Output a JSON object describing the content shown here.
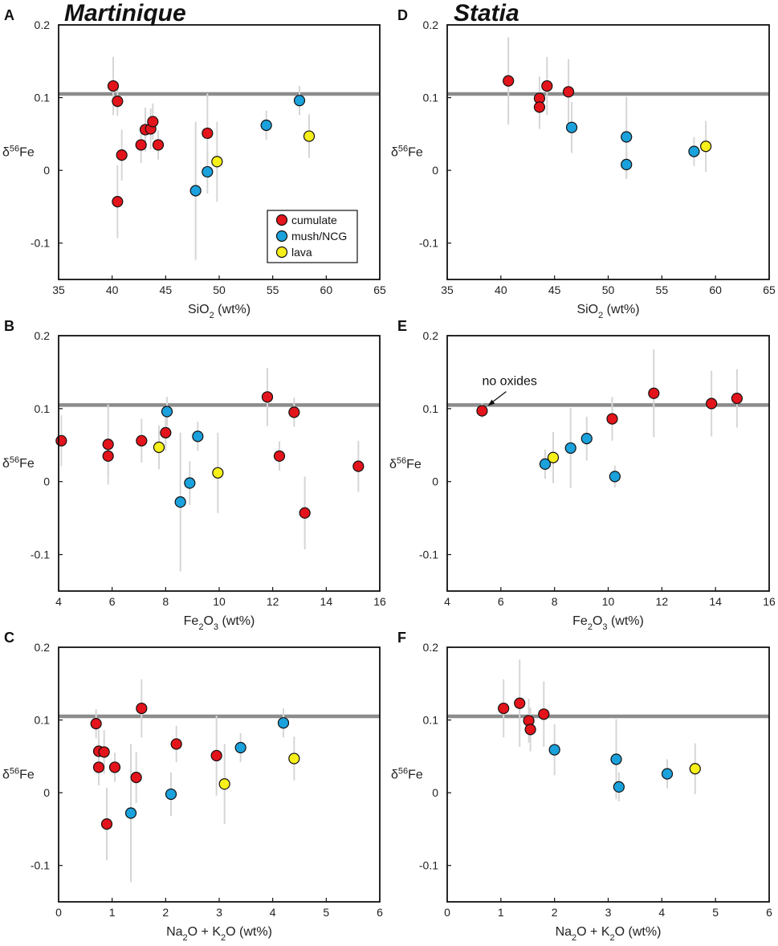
{
  "figure": {
    "titles": {
      "left": "Martinique",
      "right": "Statia"
    },
    "legend": {
      "placement": "bottom-right of panel A",
      "entries": [
        {
          "name": "cumulate",
          "color": "#e3141b"
        },
        {
          "name": "mush/NCG",
          "color": "#1ba1dc"
        },
        {
          "name": "lava",
          "color": "#f7ef1a"
        }
      ]
    },
    "colors": {
      "cumulate": "#e3141b",
      "mush": "#1ba1dc",
      "lava": "#f7ef1a",
      "refline": "#8c8c8c",
      "errorbar": "#d6d6d6"
    }
  },
  "chart_data": [
    {
      "panel": "A",
      "type": "scatter",
      "title": "Martinique",
      "xlabel": {
        "main": "SiO",
        "sub": "2",
        "tail": " (wt%)"
      },
      "ylabel": {
        "pre": "δ",
        "sup": "56",
        "post": "Fe"
      },
      "xlim": [
        35,
        65
      ],
      "ylim": [
        -0.15,
        0.2
      ],
      "xticks": [
        35,
        40,
        45,
        50,
        55,
        60,
        65
      ],
      "xtick_labels": [
        "35",
        "40",
        "45",
        "50",
        "55",
        "60",
        "65"
      ],
      "yticks": [
        -0.1,
        0,
        0.1,
        0.2
      ],
      "ytick_labels": [
        "-0.1",
        "0",
        "0.1",
        "0.2"
      ],
      "refline_y": 0.105,
      "series": [
        {
          "name": "cumulate",
          "points": [
            {
              "x": 40.1,
              "y": 0.116,
              "err": 0.04
            },
            {
              "x": 40.5,
              "y": 0.095,
              "err": 0.02
            },
            {
              "x": 40.9,
              "y": 0.021,
              "err": 0.035
            },
            {
              "x": 40.5,
              "y": -0.043,
              "err": 0.05
            },
            {
              "x": 42.7,
              "y": 0.035,
              "err": 0.025
            },
            {
              "x": 43.1,
              "y": 0.056,
              "err": 0.03
            },
            {
              "x": 43.6,
              "y": 0.057,
              "err": 0.028
            },
            {
              "x": 43.8,
              "y": 0.067,
              "err": 0.025
            },
            {
              "x": 44.3,
              "y": 0.035,
              "err": 0.02
            },
            {
              "x": 48.9,
              "y": 0.051,
              "err": 0.055
            }
          ]
        },
        {
          "name": "mush/NCG",
          "points": [
            {
              "x": 47.8,
              "y": -0.028,
              "err": 0.095
            },
            {
              "x": 48.9,
              "y": -0.002,
              "err": 0.03
            },
            {
              "x": 54.4,
              "y": 0.062,
              "err": 0.02
            },
            {
              "x": 57.5,
              "y": 0.096,
              "err": 0.02
            }
          ]
        },
        {
          "name": "lava",
          "points": [
            {
              "x": 49.8,
              "y": 0.012,
              "err": 0.055
            },
            {
              "x": 58.4,
              "y": 0.047,
              "err": 0.03
            }
          ]
        }
      ]
    },
    {
      "panel": "B",
      "type": "scatter",
      "xlabel": {
        "main": "Fe",
        "sub": "2",
        "tail": "O",
        "sub2": "3",
        "tail2": " (wt%)"
      },
      "ylabel": {
        "pre": "δ",
        "sup": "56",
        "post": "Fe"
      },
      "xlim": [
        4,
        16
      ],
      "ylim": [
        -0.15,
        0.2
      ],
      "xticks": [
        4,
        6,
        8,
        10,
        12,
        14,
        16
      ],
      "xtick_labels": [
        "4",
        "6",
        "8",
        "10",
        "12",
        "14",
        "16"
      ],
      "yticks": [
        -0.1,
        0,
        0.1,
        0.2
      ],
      "ytick_labels": [
        "-0.1",
        "0",
        "0.1",
        "0.2"
      ],
      "refline_y": 0.105,
      "series": [
        {
          "name": "cumulate",
          "points": [
            {
              "x": 4.1,
              "y": 0.056,
              "err": 0.035
            },
            {
              "x": 5.85,
              "y": 0.051,
              "err": 0.055
            },
            {
              "x": 5.85,
              "y": 0.035,
              "err": 0.025
            },
            {
              "x": 7.1,
              "y": 0.056,
              "err": 0.03
            },
            {
              "x": 8.0,
              "y": 0.067,
              "err": 0.025
            },
            {
              "x": 11.8,
              "y": 0.116,
              "err": 0.04
            },
            {
              "x": 12.8,
              "y": 0.095,
              "err": 0.02
            },
            {
              "x": 12.25,
              "y": 0.035,
              "err": 0.02
            },
            {
              "x": 13.2,
              "y": -0.043,
              "err": 0.05
            },
            {
              "x": 15.2,
              "y": 0.021,
              "err": 0.035
            }
          ]
        },
        {
          "name": "mush/NCG",
          "points": [
            {
              "x": 8.05,
              "y": 0.096,
              "err": 0.02
            },
            {
              "x": 9.2,
              "y": 0.062,
              "err": 0.02
            },
            {
              "x": 8.9,
              "y": -0.002,
              "err": 0.03
            },
            {
              "x": 8.55,
              "y": -0.028,
              "err": 0.095
            }
          ]
        },
        {
          "name": "lava",
          "points": [
            {
              "x": 7.75,
              "y": 0.047,
              "err": 0.03
            },
            {
              "x": 9.95,
              "y": 0.012,
              "err": 0.055
            }
          ]
        }
      ]
    },
    {
      "panel": "C",
      "type": "scatter",
      "xlabel": {
        "main": "Na",
        "sub": "2",
        "tail": "O + K",
        "sub2": "2",
        "tail2": "O (wt%)"
      },
      "ylabel": {
        "pre": "δ",
        "sup": "56",
        "post": "Fe"
      },
      "xlim": [
        0,
        6
      ],
      "ylim": [
        -0.15,
        0.2
      ],
      "xticks": [
        0,
        1,
        2,
        3,
        4,
        5,
        6
      ],
      "xtick_labels": [
        "0",
        "1",
        "2",
        "3",
        "4",
        "5",
        "6"
      ],
      "yticks": [
        -0.1,
        0,
        0.1,
        0.2
      ],
      "ytick_labels": [
        "-0.1",
        "0",
        "0.1",
        "0.2"
      ],
      "refline_y": 0.105,
      "series": [
        {
          "name": "cumulate",
          "points": [
            {
              "x": 0.7,
              "y": 0.095,
              "err": 0.02
            },
            {
              "x": 0.75,
              "y": 0.057,
              "err": 0.03
            },
            {
              "x": 0.85,
              "y": 0.056,
              "err": 0.03
            },
            {
              "x": 0.75,
              "y": 0.035,
              "err": 0.025
            },
            {
              "x": 1.05,
              "y": 0.035,
              "err": 0.02
            },
            {
              "x": 0.9,
              "y": -0.043,
              "err": 0.05
            },
            {
              "x": 1.45,
              "y": 0.021,
              "err": 0.035
            },
            {
              "x": 1.55,
              "y": 0.116,
              "err": 0.04
            },
            {
              "x": 2.2,
              "y": 0.067,
              "err": 0.025
            },
            {
              "x": 2.95,
              "y": 0.051,
              "err": 0.055
            }
          ]
        },
        {
          "name": "mush/NCG",
          "points": [
            {
              "x": 1.35,
              "y": -0.028,
              "err": 0.095
            },
            {
              "x": 2.1,
              "y": -0.002,
              "err": 0.03
            },
            {
              "x": 3.4,
              "y": 0.062,
              "err": 0.02
            },
            {
              "x": 4.2,
              "y": 0.096,
              "err": 0.02
            }
          ]
        },
        {
          "name": "lava",
          "points": [
            {
              "x": 3.1,
              "y": 0.012,
              "err": 0.055
            },
            {
              "x": 4.4,
              "y": 0.047,
              "err": 0.03
            }
          ]
        }
      ]
    },
    {
      "panel": "D",
      "type": "scatter",
      "title": "Statia",
      "xlabel": {
        "main": "SiO",
        "sub": "2",
        "tail": " (wt%)"
      },
      "ylabel": {
        "pre": "δ",
        "sup": "56",
        "post": "Fe"
      },
      "xlim": [
        35,
        65
      ],
      "ylim": [
        -0.15,
        0.2
      ],
      "xticks": [
        35,
        40,
        45,
        50,
        55,
        60,
        65
      ],
      "xtick_labels": [
        "35",
        "40",
        "45",
        "50",
        "55",
        "60",
        "65"
      ],
      "yticks": [
        -0.1,
        0,
        0.1,
        0.2
      ],
      "ytick_labels": [
        "-0.1",
        "0",
        "0.1",
        "0.2"
      ],
      "refline_y": 0.105,
      "series": [
        {
          "name": "cumulate",
          "points": [
            {
              "x": 40.7,
              "y": 0.123,
              "err": 0.06
            },
            {
              "x": 43.6,
              "y": 0.099,
              "err": 0.03
            },
            {
              "x": 43.6,
              "y": 0.087,
              "err": 0.03
            },
            {
              "x": 44.3,
              "y": 0.116,
              "err": 0.04
            },
            {
              "x": 46.3,
              "y": 0.108,
              "err": 0.045
            }
          ]
        },
        {
          "name": "mush/NCG",
          "points": [
            {
              "x": 46.6,
              "y": 0.059,
              "err": 0.035
            },
            {
              "x": 51.7,
              "y": 0.046,
              "err": 0.055
            },
            {
              "x": 51.7,
              "y": 0.008,
              "err": 0.02
            },
            {
              "x": 58.0,
              "y": 0.026,
              "err": 0.02
            }
          ]
        },
        {
          "name": "lava",
          "points": [
            {
              "x": 59.1,
              "y": 0.033,
              "err": 0.035
            }
          ]
        }
      ]
    },
    {
      "panel": "E",
      "type": "scatter",
      "xlabel": {
        "main": "Fe",
        "sub": "2",
        "tail": "O",
        "sub2": "3",
        "tail2": " (wt%)"
      },
      "ylabel": {
        "pre": "δ",
        "sup": "56",
        "post": "Fe"
      },
      "xlim": [
        4,
        16
      ],
      "ylim": [
        -0.15,
        0.2
      ],
      "xticks": [
        4,
        6,
        8,
        10,
        12,
        14,
        16
      ],
      "xtick_labels": [
        "4",
        "6",
        "8",
        "10",
        "12",
        "14",
        "16"
      ],
      "yticks": [
        -0.1,
        0,
        0.1,
        0.2
      ],
      "ytick_labels": [
        "-0.1",
        "0",
        "0.1",
        "0.2"
      ],
      "refline_y": 0.105,
      "annotation": {
        "text": "no oxides",
        "x": 5.3,
        "y": 0.097
      },
      "series": [
        {
          "name": "cumulate",
          "points": [
            {
              "x": 5.3,
              "y": 0.097,
              "err": 0.01
            },
            {
              "x": 10.15,
              "y": 0.086,
              "err": 0.03
            },
            {
              "x": 11.7,
              "y": 0.121,
              "err": 0.06
            },
            {
              "x": 13.85,
              "y": 0.107,
              "err": 0.045
            },
            {
              "x": 14.8,
              "y": 0.114,
              "err": 0.04
            }
          ]
        },
        {
          "name": "mush/NCG",
          "points": [
            {
              "x": 7.65,
              "y": 0.024,
              "err": 0.02
            },
            {
              "x": 8.6,
              "y": 0.046,
              "err": 0.055
            },
            {
              "x": 9.2,
              "y": 0.059,
              "err": 0.03
            },
            {
              "x": 10.25,
              "y": 0.007,
              "err": 0.015
            }
          ]
        },
        {
          "name": "lava",
          "points": [
            {
              "x": 7.95,
              "y": 0.033,
              "err": 0.035
            }
          ]
        }
      ]
    },
    {
      "panel": "F",
      "type": "scatter",
      "xlabel": {
        "main": "Na",
        "sub": "2",
        "tail": "O + K",
        "sub2": "2",
        "tail2": "O (wt%)"
      },
      "ylabel": {
        "pre": "δ",
        "sup": "56",
        "post": "Fe"
      },
      "xlim": [
        0,
        6
      ],
      "ylim": [
        -0.15,
        0.2
      ],
      "xticks": [
        0,
        1,
        2,
        3,
        4,
        5,
        6
      ],
      "xtick_labels": [
        "0",
        "1",
        "2",
        "3",
        "4",
        "5",
        "6"
      ],
      "yticks": [
        -0.1,
        0,
        0.1,
        0.2
      ],
      "ytick_labels": [
        "-0.1",
        "0",
        "0.1",
        "0.2"
      ],
      "refline_y": 0.105,
      "series": [
        {
          "name": "cumulate",
          "points": [
            {
              "x": 1.05,
              "y": 0.116,
              "err": 0.04
            },
            {
              "x": 1.35,
              "y": 0.123,
              "err": 0.06
            },
            {
              "x": 1.52,
              "y": 0.099,
              "err": 0.03
            },
            {
              "x": 1.55,
              "y": 0.087,
              "err": 0.03
            },
            {
              "x": 1.8,
              "y": 0.108,
              "err": 0.045
            }
          ]
        },
        {
          "name": "mush/NCG",
          "points": [
            {
              "x": 2.0,
              "y": 0.059,
              "err": 0.035
            },
            {
              "x": 3.15,
              "y": 0.046,
              "err": 0.055
            },
            {
              "x": 3.2,
              "y": 0.008,
              "err": 0.02
            },
            {
              "x": 4.1,
              "y": 0.026,
              "err": 0.02
            }
          ]
        },
        {
          "name": "lava",
          "points": [
            {
              "x": 4.62,
              "y": 0.033,
              "err": 0.035
            }
          ]
        }
      ]
    }
  ]
}
